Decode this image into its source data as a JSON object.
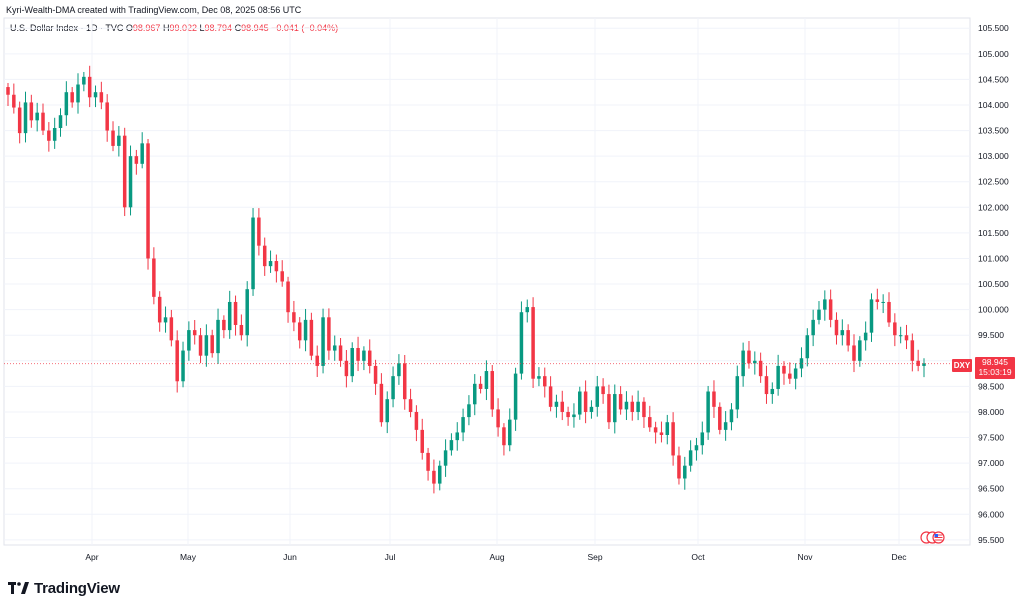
{
  "header": {
    "attribution": "Kyri-Wealth-DMA created with TradingView.com, Dec 08, 2025 08:56 UTC"
  },
  "legend": {
    "symbol": "U.S. Dollar Index · 1D · TVC",
    "open_label": "O",
    "open": "98.967",
    "high_label": "H",
    "high": "99.022",
    "low_label": "L",
    "low": "98.794",
    "close_label": "C",
    "close": "98.945",
    "change": "−0.041 (−0.04%)"
  },
  "price_scale": {
    "ticker_tag": "DXY",
    "last_price": "98.945",
    "countdown": "15:03:19"
  },
  "footer": {
    "brand": "TradingView"
  },
  "colors": {
    "up": "#089981",
    "down": "#f23645",
    "grid": "#f0f3fa",
    "text": "#131722"
  },
  "chart_data": {
    "type": "candlestick",
    "ylim": [
      95.4,
      105.7
    ],
    "y_ticks": [
      "95.500",
      "96.000",
      "96.500",
      "97.000",
      "97.500",
      "98.000",
      "98.500",
      "99.000",
      "99.500",
      "100.000",
      "100.500",
      "101.000",
      "101.500",
      "102.000",
      "102.500",
      "103.000",
      "103.500",
      "104.000",
      "104.500",
      "105.000",
      "105.500"
    ],
    "x_labels": [
      "Apr",
      "May",
      "Jun",
      "Jul",
      "Aug",
      "Sep",
      "Oct",
      "Nov",
      "Dec"
    ],
    "last_price_line": 98.945,
    "closes": [
      104.2,
      103.95,
      103.45,
      104.05,
      103.7,
      103.85,
      103.5,
      103.3,
      103.55,
      103.8,
      104.25,
      104.05,
      104.4,
      104.55,
      104.15,
      104.25,
      104.05,
      103.5,
      103.2,
      103.4,
      102.0,
      103.0,
      102.85,
      103.25,
      101.0,
      100.25,
      99.75,
      99.85,
      99.4,
      98.6,
      99.2,
      99.6,
      99.5,
      99.1,
      99.5,
      99.15,
      99.8,
      99.6,
      100.15,
      99.7,
      99.5,
      100.4,
      101.8,
      101.25,
      100.85,
      100.95,
      100.75,
      100.55,
      99.95,
      99.75,
      99.4,
      99.8,
      99.1,
      98.9,
      99.85,
      99.2,
      99.3,
      99.0,
      98.7,
      99.25,
      99.0,
      99.2,
      98.9,
      98.55,
      97.8,
      98.25,
      98.7,
      98.95,
      98.25,
      98.0,
      97.65,
      97.2,
      96.85,
      96.6,
      96.95,
      97.25,
      97.45,
      97.6,
      97.9,
      98.15,
      98.55,
      98.45,
      98.8,
      98.05,
      97.7,
      97.35,
      97.85,
      98.75,
      99.95,
      100.05,
      98.65,
      98.7,
      98.5,
      98.1,
      98.2,
      98.0,
      97.9,
      97.95,
      98.4,
      98.0,
      98.1,
      98.5,
      98.35,
      97.8,
      98.35,
      98.05,
      98.2,
      98.0,
      98.2,
      97.9,
      97.7,
      97.6,
      97.55,
      97.8,
      97.15,
      96.7,
      96.95,
      97.25,
      97.35,
      97.6,
      98.4,
      98.1,
      97.65,
      97.8,
      98.05,
      98.7,
      99.2,
      98.95,
      99.0,
      98.7,
      98.35,
      98.45,
      98.9,
      98.75,
      98.65,
      98.85,
      99.05,
      99.5,
      99.8,
      100.0,
      100.2,
      99.8,
      99.5,
      99.6,
      99.3,
      99.0,
      99.4,
      99.55,
      100.2,
      100.15,
      100.15,
      99.75,
      99.5,
      99.5,
      99.4,
      99.0,
      98.9,
      98.95
    ]
  }
}
